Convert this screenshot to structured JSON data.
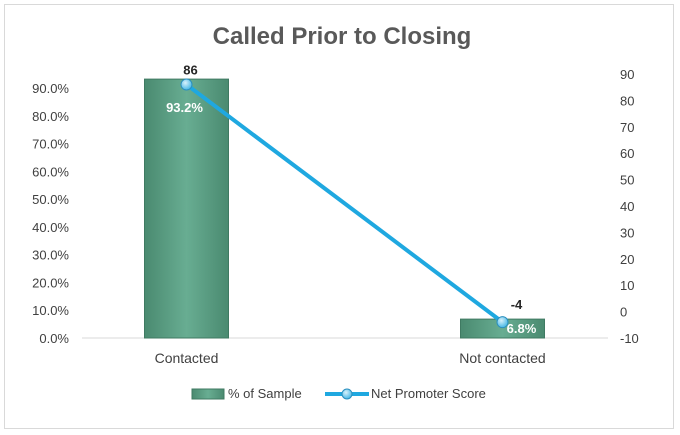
{
  "chart_data": {
    "type": "bar",
    "title": "Called Prior to Closing",
    "categories": [
      "Contacted",
      "Not contacted"
    ],
    "series": [
      {
        "name": "% of Sample",
        "type": "bar",
        "axis": "left",
        "values": [
          93.2,
          6.8
        ],
        "data_labels": [
          "93.2%",
          "6.8%"
        ],
        "color": "#5a9f84"
      },
      {
        "name": "Net Promoter Score",
        "type": "line",
        "axis": "right",
        "values": [
          86,
          -4
        ],
        "data_labels": [
          "86",
          "-4"
        ],
        "color": "#1fa8e0"
      }
    ],
    "y_left": {
      "range": [
        0,
        90
      ],
      "ticks": [
        0,
        10,
        20,
        30,
        40,
        50,
        60,
        70,
        80,
        90
      ],
      "tick_labels": [
        "0.0%",
        "10.0%",
        "20.0%",
        "30.0%",
        "40.0%",
        "50.0%",
        "60.0%",
        "70.0%",
        "80.0%",
        "90.0%"
      ]
    },
    "y_right": {
      "range": [
        -10,
        90
      ],
      "ticks": [
        -10,
        0,
        10,
        20,
        30,
        40,
        50,
        60,
        70,
        80,
        90
      ],
      "tick_labels": [
        "-10",
        "0",
        "10",
        "20",
        "30",
        "40",
        "50",
        "60",
        "70",
        "80",
        "90"
      ]
    },
    "grid": false,
    "legend": "bottom"
  }
}
